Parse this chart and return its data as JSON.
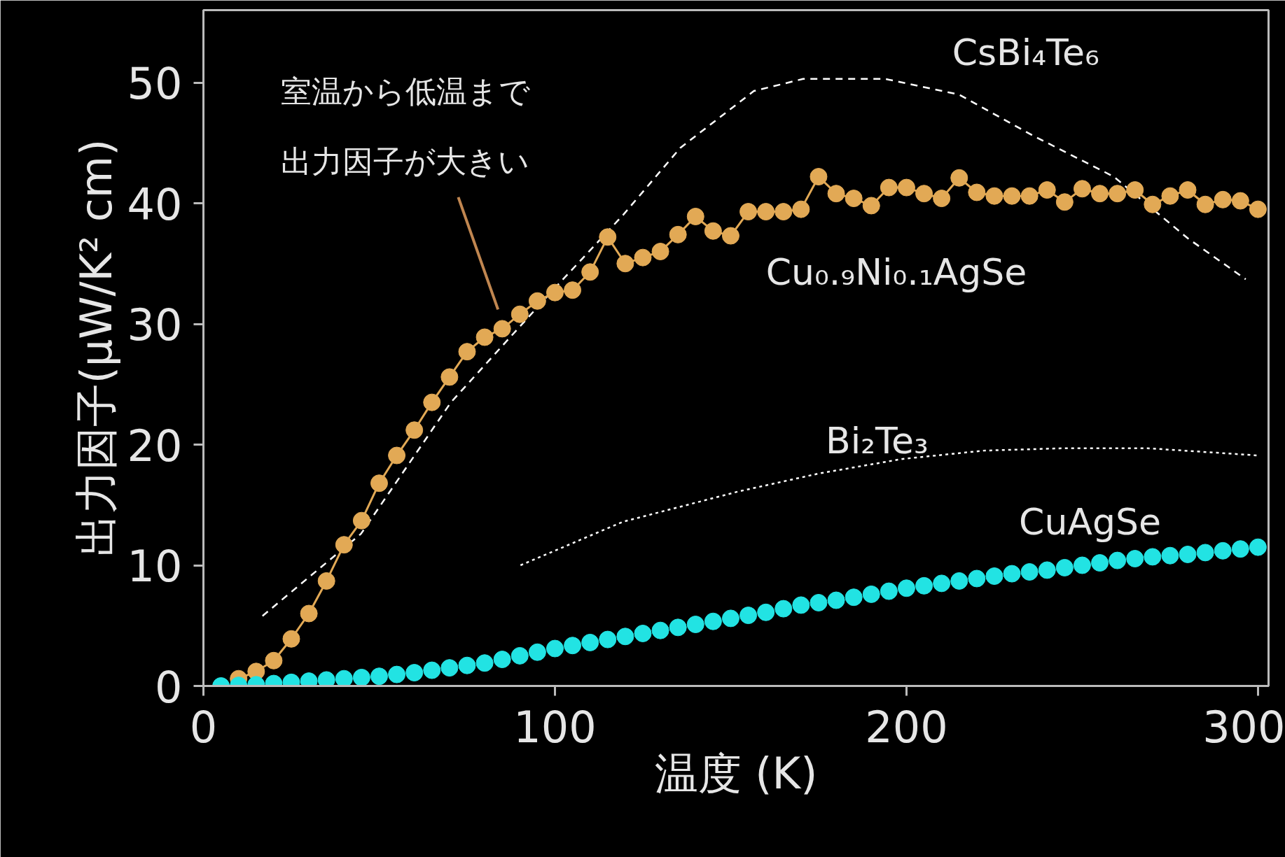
{
  "chart_data": {
    "type": "line",
    "xlabel": "温度 (K)",
    "ylabel": "出力因子(μW/K² cm)",
    "xlim": [
      0,
      303
    ],
    "ylim": [
      0,
      56
    ],
    "xticks": [
      0,
      100,
      200,
      300
    ],
    "yticks": [
      0,
      10,
      20,
      30,
      40,
      50
    ],
    "grid": false,
    "legend": false,
    "annotations": [
      "室温から低温まで",
      "出力因子が大きい"
    ],
    "series": [
      {
        "name": "CuAgSe",
        "color": "#22e3e3",
        "type": "scatter",
        "marker": "circle",
        "x": [
          5,
          10,
          15,
          20,
          25,
          30,
          35,
          40,
          45,
          50,
          55,
          60,
          65,
          70,
          75,
          80,
          85,
          90,
          95,
          100,
          105,
          110,
          115,
          120,
          125,
          130,
          135,
          140,
          145,
          150,
          155,
          160,
          165,
          170,
          175,
          180,
          185,
          190,
          195,
          200,
          205,
          210,
          215,
          220,
          225,
          230,
          235,
          240,
          245,
          250,
          255,
          260,
          265,
          270,
          275,
          280,
          285,
          290,
          295,
          300
        ],
        "values": [
          0.0,
          0.05,
          0.1,
          0.2,
          0.3,
          0.4,
          0.5,
          0.6,
          0.7,
          0.8,
          0.95,
          1.1,
          1.3,
          1.5,
          1.7,
          1.9,
          2.2,
          2.5,
          2.8,
          3.1,
          3.35,
          3.6,
          3.85,
          4.1,
          4.35,
          4.6,
          4.85,
          5.1,
          5.35,
          5.6,
          5.85,
          6.1,
          6.4,
          6.7,
          6.9,
          7.1,
          7.35,
          7.6,
          7.85,
          8.1,
          8.3,
          8.5,
          8.7,
          8.9,
          9.1,
          9.3,
          9.45,
          9.6,
          9.8,
          10.0,
          10.2,
          10.4,
          10.55,
          10.7,
          10.8,
          10.9,
          11.05,
          11.2,
          11.35,
          11.5
        ]
      },
      {
        "name": "CsBi₄Te₆",
        "color": "#ffffff",
        "marker": "none",
        "line_style": "dashed",
        "x": [
          16.8,
          44.8,
          70.4,
          100.7,
          119.3,
          135.7,
          156.6,
          170.6,
          194,
          215,
          236,
          259,
          280,
          296.5
        ],
        "values": [
          5.8,
          12.6,
          23.5,
          33.2,
          39.0,
          44.6,
          49.3,
          50.3,
          50.3,
          49.0,
          45.6,
          42.2,
          37.1,
          33.7
        ]
      },
      {
        "name": "Cu₀.₉Ni₀.₁AgSe",
        "color": "#e2a955",
        "marker": "circle",
        "line_style": "solid",
        "x": [
          10,
          15,
          20,
          25,
          30,
          35,
          40,
          45,
          50,
          55,
          60,
          65,
          70,
          75,
          80,
          85,
          90,
          95,
          100,
          105,
          110,
          115,
          120,
          125,
          130,
          135,
          140,
          145,
          150,
          155,
          160,
          165,
          170,
          175,
          180,
          185,
          190,
          195,
          200,
          205,
          210,
          215,
          220,
          225,
          230,
          235,
          240,
          245,
          250,
          255,
          260,
          265,
          270,
          275,
          280,
          285,
          290,
          295,
          300
        ],
        "values": [
          0.6,
          1.2,
          2.1,
          3.9,
          6.0,
          8.7,
          11.7,
          13.7,
          16.8,
          19.1,
          21.2,
          23.5,
          25.6,
          27.7,
          28.9,
          29.6,
          30.8,
          31.9,
          32.6,
          32.8,
          34.3,
          37.2,
          35.0,
          35.5,
          36.0,
          37.4,
          38.9,
          37.7,
          37.3,
          39.3,
          39.3,
          39.3,
          39.5,
          42.2,
          40.8,
          40.4,
          39.8,
          41.3,
          41.3,
          40.8,
          40.4,
          42.1,
          40.9,
          40.6,
          40.6,
          40.6,
          41.1,
          40.1,
          41.2,
          40.8,
          40.8,
          41.1,
          39.9,
          40.6,
          41.1,
          39.9,
          40.3,
          40.2,
          39.5
        ]
      },
      {
        "name": "Bi₂Te₃",
        "color": "#ffffff",
        "marker": "none",
        "line_style": "dotted",
        "x": [
          90.2,
          119.3,
          152,
          175,
          198.6,
          222,
          245,
          268.5,
          300
        ],
        "values": [
          10.0,
          13.6,
          16.1,
          17.6,
          18.8,
          19.5,
          19.7,
          19.7,
          19.1
        ]
      }
    ]
  }
}
